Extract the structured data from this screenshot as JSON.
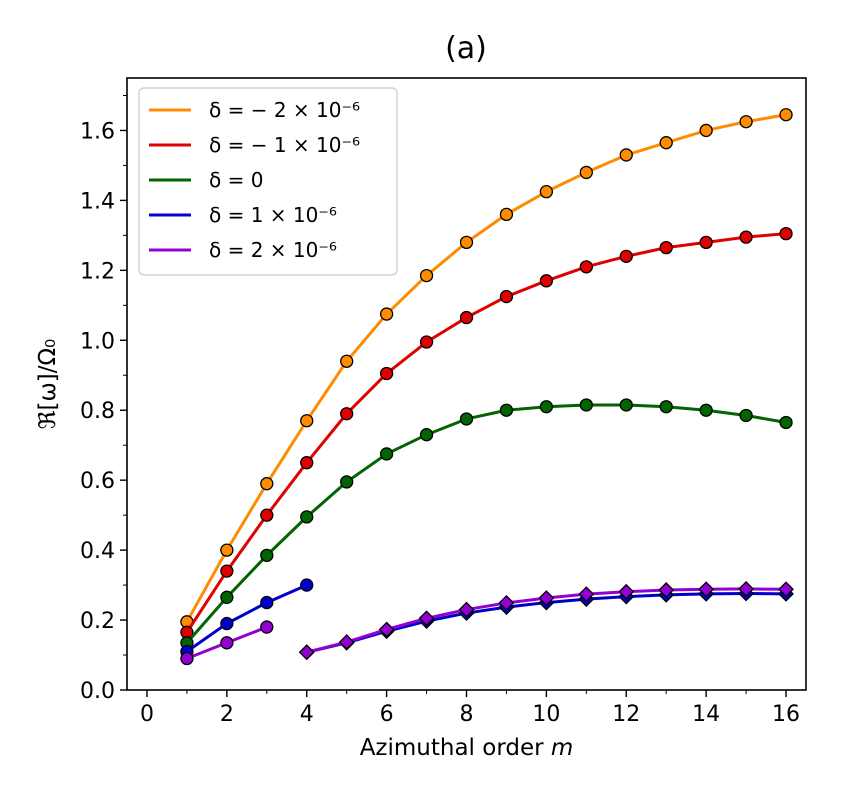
{
  "chart_data": {
    "type": "line",
    "title": "(a)",
    "xlabel": "Azimuthal order m",
    "ylabel": "ℜ[ω]/Ω₀",
    "xlim": [
      -0.5,
      16.5
    ],
    "ylim": [
      0.0,
      1.75
    ],
    "xticks": [
      0,
      2,
      4,
      6,
      8,
      10,
      12,
      14,
      16
    ],
    "yticks": [
      0.0,
      0.2,
      0.4,
      0.6,
      0.8,
      1.0,
      1.2,
      1.4,
      1.6
    ],
    "ytick_labels": [
      "0.0",
      "0.2",
      "0.4",
      "0.6",
      "0.8",
      "1.0",
      "1.2",
      "1.4",
      "1.6"
    ],
    "legend_position": "top-left",
    "grid": false,
    "series": [
      {
        "name": "δ = − 2 × 10⁻⁶",
        "color": "#ff8c00",
        "marker": "circle",
        "x": [
          1,
          2,
          3,
          4,
          5,
          6,
          7,
          8,
          9,
          10,
          11,
          12,
          13,
          14,
          15,
          16
        ],
        "y": [
          0.195,
          0.4,
          0.59,
          0.77,
          0.94,
          1.075,
          1.185,
          1.28,
          1.36,
          1.425,
          1.48,
          1.53,
          1.565,
          1.6,
          1.625,
          1.645
        ]
      },
      {
        "name": "δ = − 1 × 10⁻⁶",
        "color": "#e00000",
        "marker": "circle",
        "x": [
          1,
          2,
          3,
          4,
          5,
          6,
          7,
          8,
          9,
          10,
          11,
          12,
          13,
          14,
          15,
          16
        ],
        "y": [
          0.165,
          0.34,
          0.5,
          0.65,
          0.79,
          0.905,
          0.995,
          1.065,
          1.125,
          1.17,
          1.21,
          1.24,
          1.265,
          1.28,
          1.295,
          1.305
        ]
      },
      {
        "name": "δ = 0",
        "color": "#006400",
        "marker": "circle",
        "x": [
          1,
          2,
          3,
          4,
          5,
          6,
          7,
          8,
          9,
          10,
          11,
          12,
          13,
          14,
          15,
          16
        ],
        "y": [
          0.135,
          0.265,
          0.385,
          0.495,
          0.595,
          0.675,
          0.73,
          0.775,
          0.8,
          0.81,
          0.815,
          0.815,
          0.81,
          0.8,
          0.785,
          0.765
        ]
      },
      {
        "name": "δ = 1 × 10⁻⁶",
        "color": "#0000cc",
        "marker": "circle",
        "x": [
          1,
          2,
          3,
          4
        ],
        "y": [
          0.11,
          0.19,
          0.25,
          0.3
        ]
      },
      {
        "name": "δ = 2 × 10⁻⁶",
        "color": "#9400d3",
        "marker": "circle",
        "x": [
          1,
          2,
          3
        ],
        "y": [
          0.09,
          0.135,
          0.18
        ]
      },
      {
        "name": "",
        "color": "#0000cc",
        "marker": "diamond",
        "x": [
          4,
          5,
          6,
          7,
          8,
          9,
          10,
          11,
          12,
          13,
          14,
          15,
          16
        ],
        "y": [
          0.108,
          0.135,
          0.168,
          0.197,
          0.22,
          0.237,
          0.25,
          0.26,
          0.267,
          0.272,
          0.275,
          0.276,
          0.275
        ]
      },
      {
        "name": "",
        "color": "#9400d3",
        "marker": "diamond",
        "x": [
          4,
          5,
          6,
          7,
          8,
          9,
          10,
          11,
          12,
          13,
          14,
          15,
          16
        ],
        "y": [
          0.108,
          0.137,
          0.173,
          0.205,
          0.23,
          0.249,
          0.263,
          0.274,
          0.281,
          0.286,
          0.288,
          0.289,
          0.288
        ]
      }
    ]
  }
}
